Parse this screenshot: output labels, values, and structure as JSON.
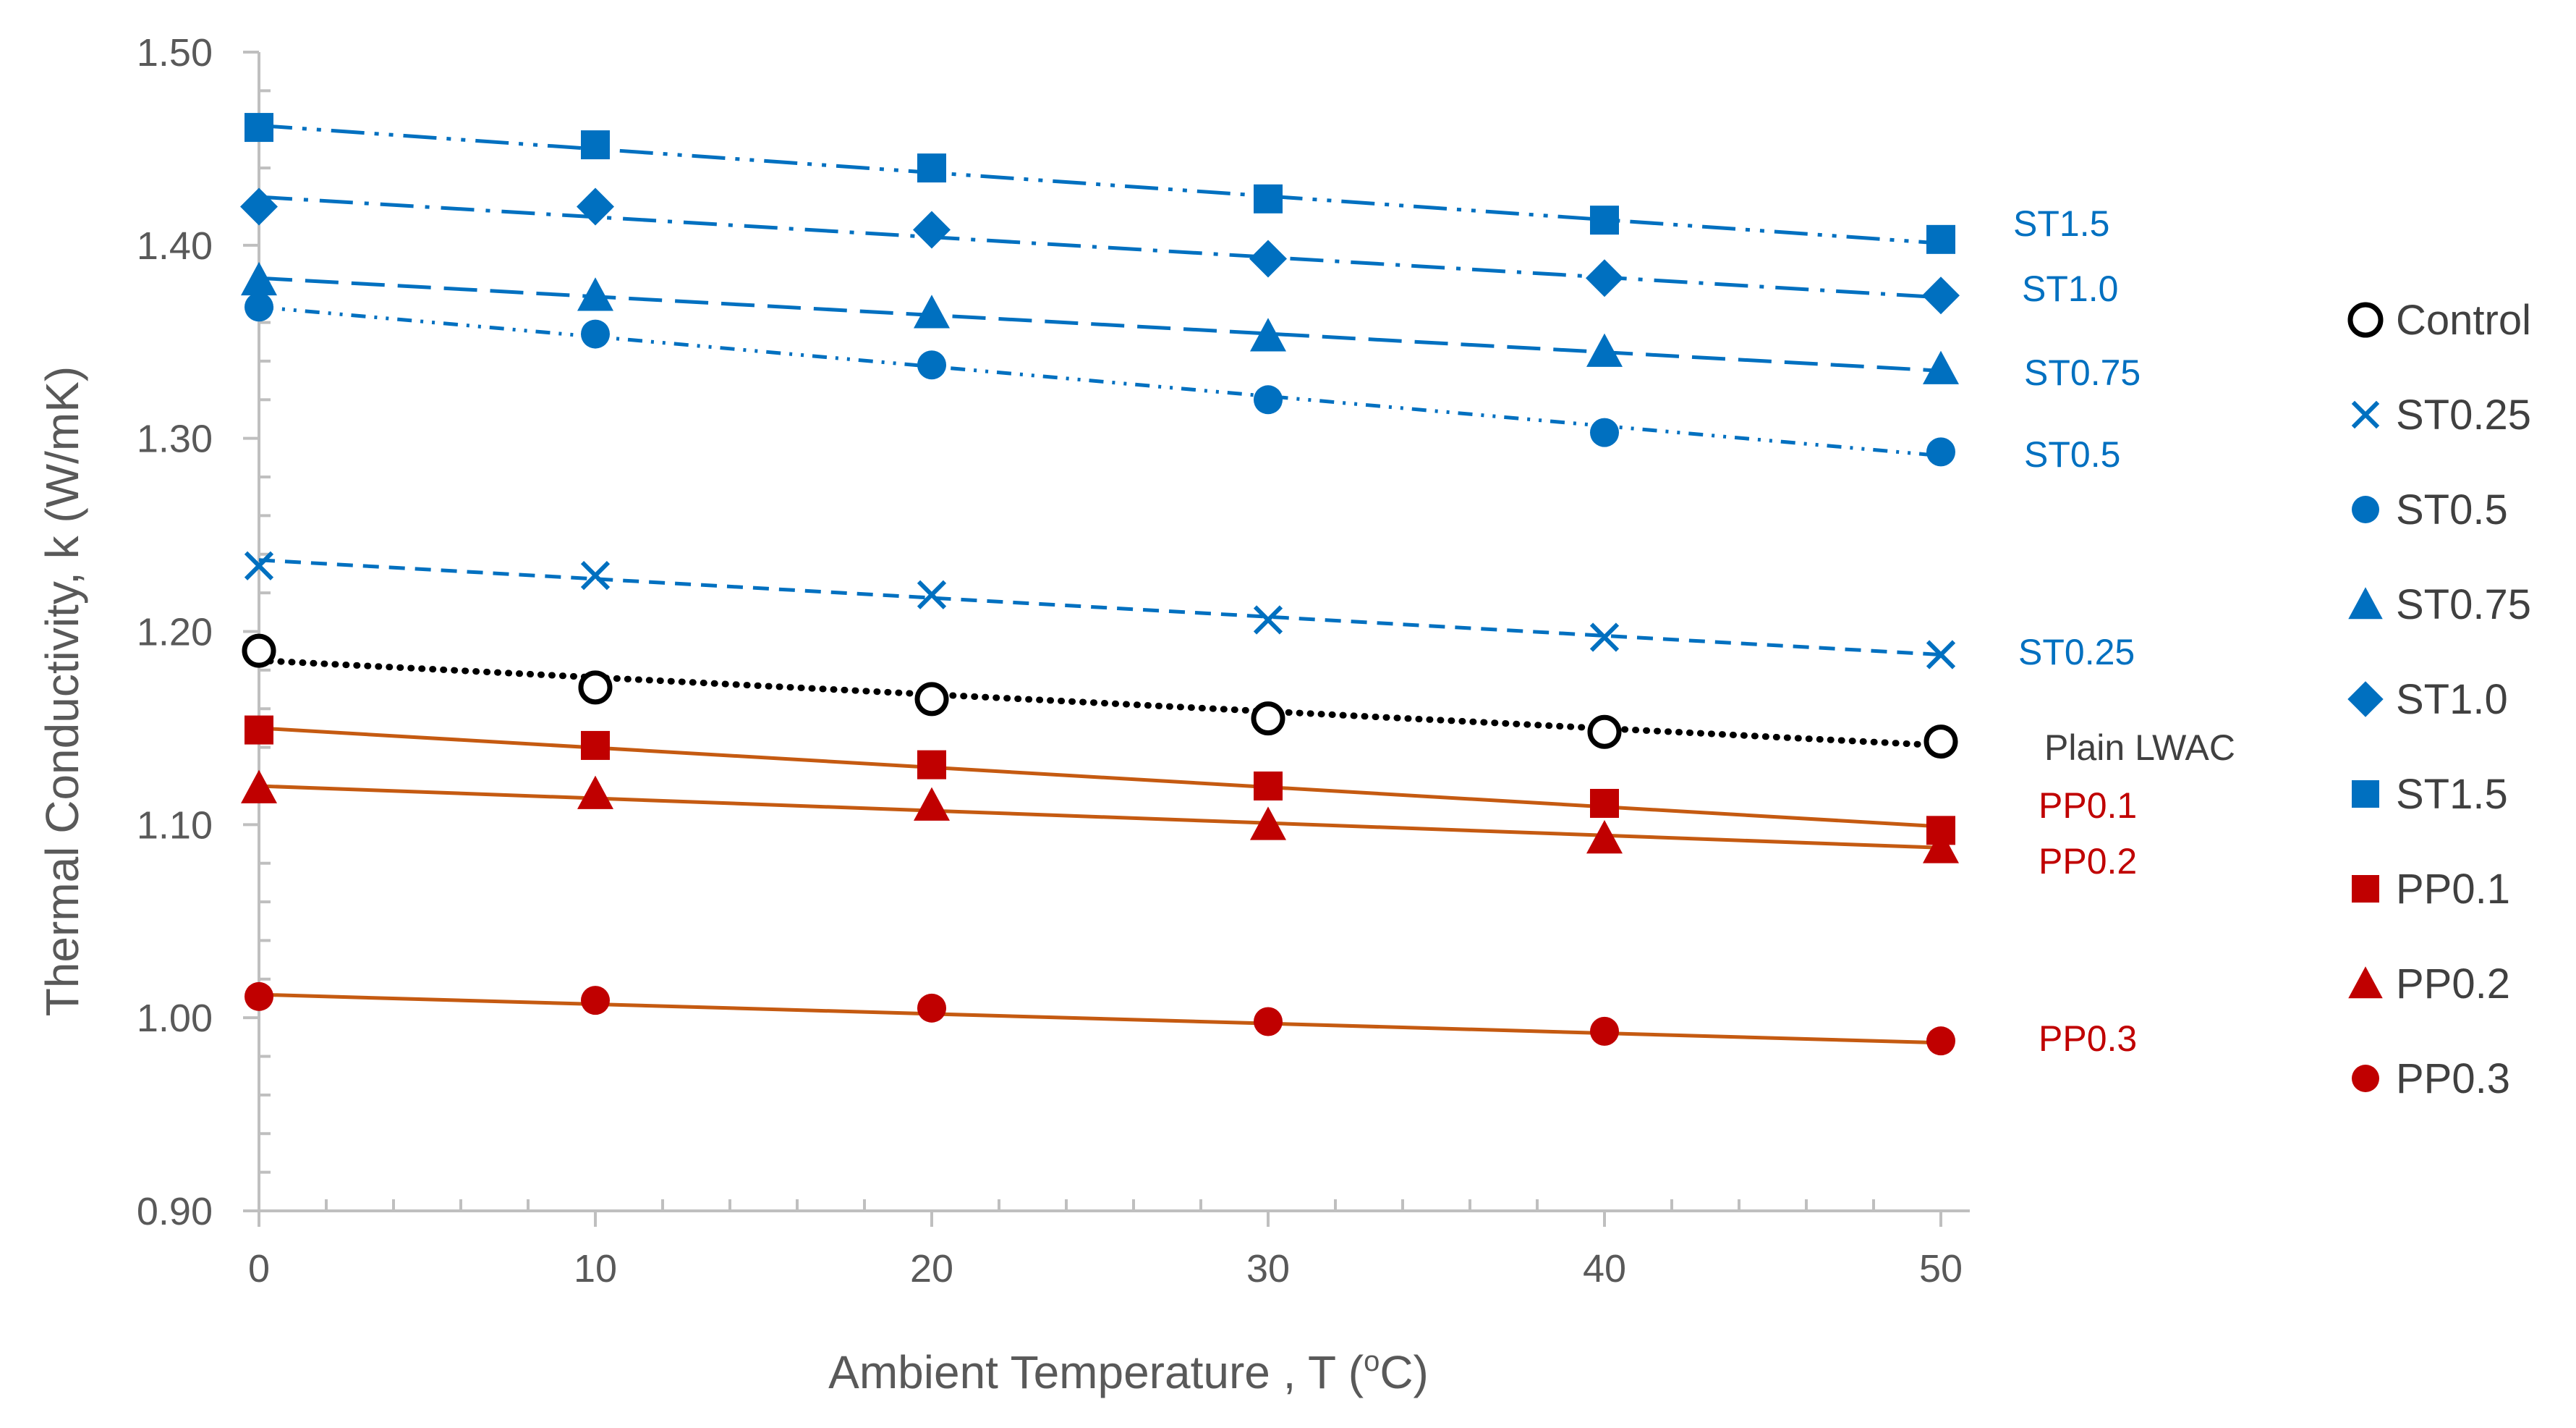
{
  "chart_data": {
    "type": "scatter",
    "title": "",
    "xlabel": "Ambient Temperature , T  (",
    "xlabel_sup": "o",
    "xlabel_suffix": "C)",
    "ylabel": "Thermal Conductivity, k  (W/mK)",
    "xlim": [
      0,
      50
    ],
    "ylim": [
      0.9,
      1.5
    ],
    "x_ticks": [
      "0",
      "10",
      "20",
      "30",
      "40",
      "50"
    ],
    "y_ticks": [
      "0.90",
      "1.00",
      "1.10",
      "1.20",
      "1.30",
      "1.40",
      "1.50"
    ],
    "grid": false,
    "legend_position": "right",
    "x": [
      0,
      10,
      20,
      30,
      40,
      50
    ],
    "series": [
      {
        "name": "Control",
        "marker": "open-circle",
        "color": "#000000",
        "values": [
          1.19,
          1.171,
          1.165,
          1.155,
          1.148,
          1.143
        ],
        "trend": [
          1.185,
          1.141
        ],
        "trend_style": "dotted",
        "annotation": "Plain LWAC",
        "annotation_color": "#404040"
      },
      {
        "name": "ST0.25",
        "marker": "x",
        "color": "#0070C0",
        "values": [
          1.234,
          1.229,
          1.219,
          1.206,
          1.197,
          1.188
        ],
        "trend": [
          1.237,
          1.188
        ],
        "trend_style": "dashed",
        "annotation": "ST0.25",
        "annotation_color": "#0070C0"
      },
      {
        "name": "ST0.5",
        "marker": "circle",
        "color": "#0070C0",
        "values": [
          1.368,
          1.354,
          1.338,
          1.32,
          1.303,
          1.293
        ],
        "trend": [
          1.368,
          1.291
        ],
        "trend_style": "dash-dot-dot",
        "annotation": "ST0.5",
        "annotation_color": "#0070C0"
      },
      {
        "name": "ST0.75",
        "marker": "triangle",
        "color": "#0070C0",
        "values": [
          1.382,
          1.374,
          1.365,
          1.353,
          1.345,
          1.336
        ],
        "trend": [
          1.383,
          1.335
        ],
        "trend_style": "long-dash",
        "annotation": "ST0.75",
        "annotation_color": "#0070C0"
      },
      {
        "name": "ST1.0",
        "marker": "diamond",
        "color": "#0070C0",
        "values": [
          1.42,
          1.42,
          1.408,
          1.393,
          1.383,
          1.374
        ],
        "trend": [
          1.425,
          1.373
        ],
        "trend_style": "long-dash-dot",
        "annotation": "ST1.0",
        "annotation_color": "#0070C0"
      },
      {
        "name": "ST1.5",
        "marker": "square",
        "color": "#0070C0",
        "values": [
          1.461,
          1.452,
          1.44,
          1.424,
          1.413,
          1.403
        ],
        "trend": [
          1.462,
          1.401
        ],
        "trend_style": "long-dash-dot-dot",
        "annotation": "ST1.5",
        "annotation_color": "#0070C0"
      },
      {
        "name": "PP0.1",
        "marker": "square",
        "color": "#C00000",
        "values": [
          1.149,
          1.141,
          1.131,
          1.12,
          1.111,
          1.097
        ],
        "trend": [
          1.15,
          1.099
        ],
        "trend_style": "solid",
        "trend_color": "#C55A11",
        "annotation": "PP0.1",
        "annotation_color": "#C00000"
      },
      {
        "name": "PP0.2",
        "marker": "triangle",
        "color": "#C00000",
        "values": [
          1.119,
          1.116,
          1.11,
          1.1,
          1.093,
          1.088
        ],
        "trend": [
          1.12,
          1.088
        ],
        "trend_style": "solid",
        "trend_color": "#C55A11",
        "annotation": "PP0.2",
        "annotation_color": "#C00000"
      },
      {
        "name": "PP0.3",
        "marker": "circle",
        "color": "#C00000",
        "values": [
          1.011,
          1.009,
          1.005,
          0.998,
          0.993,
          0.988
        ],
        "trend": [
          1.012,
          0.987
        ],
        "trend_style": "solid",
        "trend_color": "#C55A11",
        "annotation": "PP0.3",
        "annotation_color": "#C00000"
      }
    ]
  }
}
